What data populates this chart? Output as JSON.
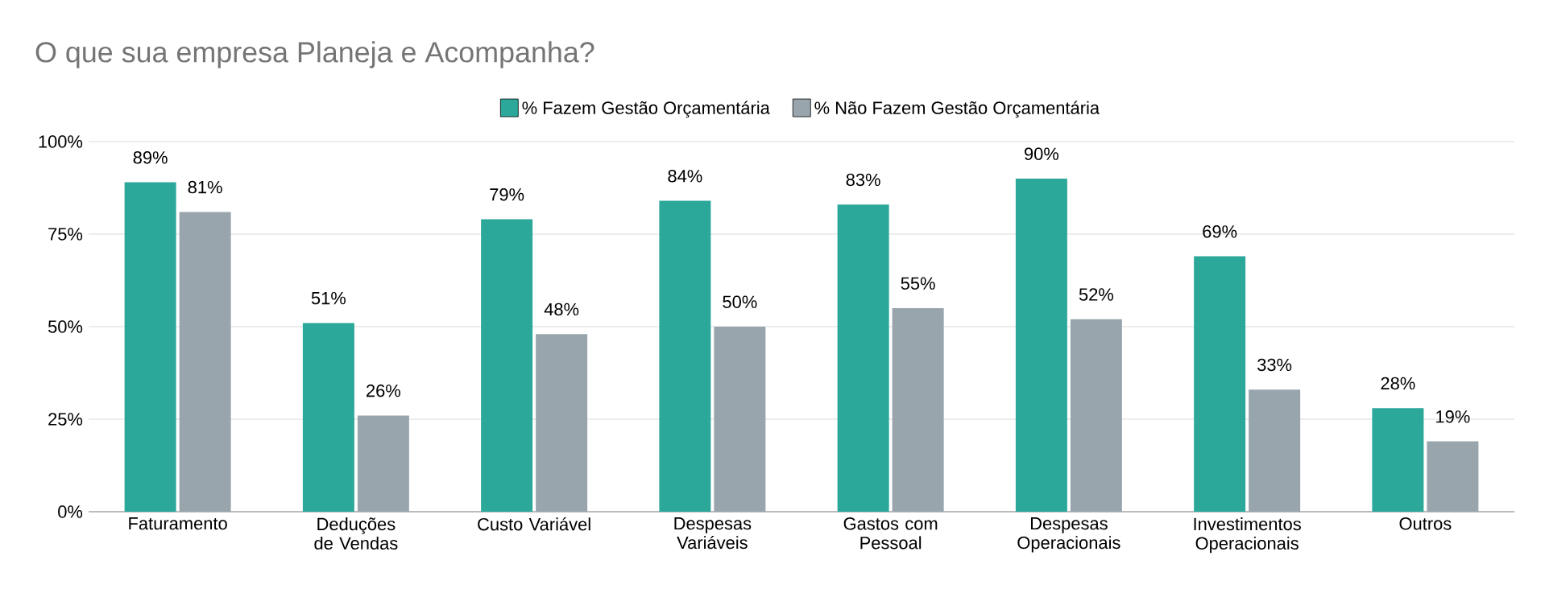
{
  "chart_data": {
    "type": "bar",
    "title": "O que sua empresa Planeja e Acompanha?",
    "categories": [
      "Faturamento",
      "Deduções de Vendas",
      "Custo Variável",
      "Despesas Variáveis",
      "Gastos com Pessoal",
      "Despesas Operacionais",
      "Investimentos Operacionais",
      "Outros"
    ],
    "series": [
      {
        "name": "% Fazem Gestão Orçamentária",
        "color": "#2ca89a",
        "values": [
          89,
          51,
          79,
          84,
          83,
          90,
          69,
          28
        ],
        "value_labels": [
          "89%",
          "51%",
          "79%",
          "84%",
          "83%",
          "90%",
          "69%",
          "28%"
        ]
      },
      {
        "name": "% Não Fazem Gestão Orçamentária",
        "color": "#99a5ad",
        "values": [
          81,
          26,
          48,
          50,
          55,
          52,
          33,
          19
        ],
        "value_labels": [
          "81%",
          "26%",
          "48%",
          "50%",
          "55%",
          "52%",
          "33%",
          "19%"
        ]
      }
    ],
    "ylim": [
      0,
      100
    ],
    "yticks": [
      {
        "value": 0,
        "label": "0%"
      },
      {
        "value": 25,
        "label": "25%"
      },
      {
        "value": 50,
        "label": "50%"
      },
      {
        "value": 75,
        "label": "75%"
      },
      {
        "value": 100,
        "label": "100%"
      }
    ],
    "grid": "y",
    "legend": "top"
  }
}
